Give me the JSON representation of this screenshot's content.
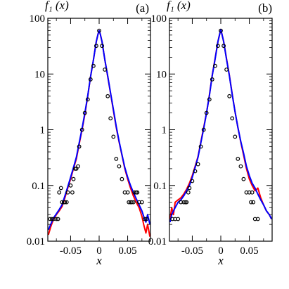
{
  "chart_data": [
    {
      "panel": "(a)",
      "type": "line",
      "ylabel": "f₁ (x)",
      "xlabel": "x",
      "yscale": "log",
      "ylim": [
        0.01,
        100
      ],
      "xlim": [
        -0.09,
        0.09
      ],
      "x_ticks": [
        "-0.05",
        "0",
        "0.05"
      ],
      "y_ticks": [
        "0.01",
        "0.1",
        "1",
        "10",
        "100"
      ],
      "series": [
        {
          "color": "#ff0000",
          "style": "line",
          "x": [
            -0.089,
            -0.085,
            -0.08,
            -0.075,
            -0.07,
            -0.065,
            -0.06,
            -0.055,
            -0.05,
            -0.045,
            -0.04,
            -0.035,
            -0.03,
            -0.025,
            -0.02,
            -0.015,
            -0.01,
            -0.005,
            -0.002,
            0,
            0.002,
            0.005,
            0.01,
            0.015,
            0.02,
            0.025,
            0.03,
            0.035,
            0.04,
            0.045,
            0.05,
            0.055,
            0.06,
            0.065,
            0.07,
            0.075,
            0.078,
            0.082,
            0.085,
            0.089
          ],
          "y": [
            0.013,
            0.018,
            0.025,
            0.03,
            0.035,
            0.042,
            0.06,
            0.09,
            0.13,
            0.2,
            0.3,
            0.55,
            1.0,
            1.9,
            4.0,
            9,
            18,
            38,
            52,
            60,
            52,
            38,
            18,
            9,
            4.5,
            2.2,
            1.1,
            0.6,
            0.35,
            0.2,
            0.13,
            0.09,
            0.065,
            0.05,
            0.04,
            0.028,
            0.02,
            0.014,
            0.02,
            0.012
          ]
        },
        {
          "color": "#0000ff",
          "style": "line",
          "x": [
            -0.089,
            -0.085,
            -0.08,
            -0.075,
            -0.07,
            -0.065,
            -0.06,
            -0.055,
            -0.05,
            -0.045,
            -0.04,
            -0.035,
            -0.03,
            -0.025,
            -0.02,
            -0.015,
            -0.01,
            -0.005,
            -0.002,
            0,
            0.002,
            0.005,
            0.01,
            0.015,
            0.02,
            0.025,
            0.03,
            0.035,
            0.04,
            0.045,
            0.05,
            0.055,
            0.06,
            0.065,
            0.07,
            0.075,
            0.078,
            0.082,
            0.085,
            0.089
          ],
          "y": [
            0.016,
            0.02,
            0.026,
            0.031,
            0.037,
            0.045,
            0.065,
            0.095,
            0.14,
            0.21,
            0.32,
            0.58,
            1.05,
            2.0,
            4.1,
            9,
            18,
            38,
            52,
            60,
            52,
            38,
            18,
            9.2,
            4.6,
            2.3,
            1.15,
            0.62,
            0.36,
            0.21,
            0.14,
            0.1,
            0.075,
            0.058,
            0.045,
            0.035,
            0.028,
            0.022,
            0.03,
            0.02
          ]
        },
        {
          "color": "#000000",
          "style": "circle",
          "x": [
            -0.086,
            -0.083,
            -0.08,
            -0.075,
            -0.072,
            -0.07,
            -0.067,
            -0.065,
            -0.062,
            -0.06,
            -0.057,
            -0.055,
            -0.05,
            -0.047,
            -0.045,
            -0.042,
            -0.04,
            -0.037,
            -0.035,
            -0.03,
            -0.025,
            -0.02,
            -0.015,
            -0.01,
            -0.005,
            0,
            0.005,
            0.01,
            0.015,
            0.02,
            0.025,
            0.03,
            0.035,
            0.04,
            0.045,
            0.05,
            0.052,
            0.055,
            0.057,
            0.06,
            0.062,
            0.065,
            0.067,
            0.07,
            0.075,
            0.08,
            0.083
          ],
          "y": [
            0.025,
            0.025,
            0.025,
            0.025,
            0.025,
            0.075,
            0.09,
            0.05,
            0.05,
            0.05,
            0.05,
            0.075,
            0.1,
            0.075,
            0.13,
            0.2,
            0.2,
            0.22,
            0.5,
            1.0,
            2.0,
            3.5,
            8.0,
            14,
            32,
            60,
            32,
            12,
            4.0,
            1.6,
            0.75,
            0.3,
            0.22,
            0.13,
            0.075,
            0.075,
            0.05,
            0.05,
            0.05,
            0.05,
            0.075,
            0.075,
            0.075,
            0.05,
            0.05,
            0.025,
            0.025
          ]
        }
      ]
    },
    {
      "panel": "(b)",
      "type": "line",
      "ylabel": "f₁ (x)",
      "xlabel": "x",
      "yscale": "log",
      "ylim": [
        0.01,
        100
      ],
      "xlim": [
        -0.09,
        0.09
      ],
      "x_ticks": [
        "-0.05",
        "0",
        "0.05"
      ],
      "y_ticks": [
        "0.01",
        "0.1",
        "1",
        "10",
        "100"
      ],
      "series": [
        {
          "color": "#ff0000",
          "style": "line",
          "x": [
            -0.089,
            -0.086,
            -0.083,
            -0.08,
            -0.075,
            -0.07,
            -0.065,
            -0.06,
            -0.055,
            -0.05,
            -0.045,
            -0.04,
            -0.035,
            -0.03,
            -0.025,
            -0.02,
            -0.015,
            -0.01,
            -0.005,
            -0.002,
            0,
            0.002,
            0.005,
            0.01,
            0.015,
            0.02,
            0.025,
            0.03,
            0.035,
            0.04,
            0.045,
            0.05,
            0.055,
            0.06,
            0.065,
            0.07,
            0.075,
            0.08,
            0.085,
            0.089
          ],
          "y": [
            0.025,
            0.04,
            0.03,
            0.05,
            0.055,
            0.06,
            0.07,
            0.085,
            0.11,
            0.15,
            0.22,
            0.33,
            0.6,
            1.1,
            2.0,
            4.2,
            9.5,
            19,
            38,
            52,
            62,
            52,
            38,
            19,
            9.5,
            4.4,
            2.1,
            1.1,
            0.6,
            0.35,
            0.2,
            0.13,
            0.1,
            0.08,
            0.09,
            0.06,
            0.045,
            0.035,
            0.03,
            0.025
          ]
        },
        {
          "color": "#0000ff",
          "style": "line",
          "x": [
            -0.089,
            -0.086,
            -0.083,
            -0.08,
            -0.075,
            -0.07,
            -0.065,
            -0.06,
            -0.055,
            -0.05,
            -0.045,
            -0.04,
            -0.035,
            -0.03,
            -0.025,
            -0.02,
            -0.015,
            -0.01,
            -0.005,
            -0.002,
            0,
            0.002,
            0.005,
            0.01,
            0.015,
            0.02,
            0.025,
            0.03,
            0.035,
            0.04,
            0.045,
            0.05,
            0.055,
            0.06,
            0.065,
            0.07,
            0.075,
            0.08,
            0.085,
            0.089
          ],
          "y": [
            0.022,
            0.03,
            0.035,
            0.04,
            0.05,
            0.055,
            0.065,
            0.08,
            0.1,
            0.14,
            0.21,
            0.32,
            0.58,
            1.05,
            2.0,
            4.1,
            9.3,
            18.5,
            38,
            52,
            62,
            52,
            38,
            18.5,
            9.3,
            4.3,
            2.1,
            1.1,
            0.62,
            0.38,
            0.22,
            0.15,
            0.11,
            0.09,
            0.07,
            0.055,
            0.045,
            0.035,
            0.03,
            0.025
          ]
        },
        {
          "color": "#000000",
          "style": "circle",
          "x": [
            -0.085,
            -0.08,
            -0.075,
            -0.07,
            -0.065,
            -0.062,
            -0.06,
            -0.057,
            -0.055,
            -0.05,
            -0.045,
            -0.04,
            -0.035,
            -0.03,
            -0.025,
            -0.02,
            -0.015,
            -0.01,
            -0.005,
            0,
            0.005,
            0.01,
            0.015,
            0.02,
            0.025,
            0.03,
            0.035,
            0.04,
            0.045,
            0.05,
            0.053,
            0.055,
            0.057,
            0.06,
            0.065
          ],
          "y": [
            0.025,
            0.025,
            0.025,
            0.05,
            0.05,
            0.05,
            0.05,
            0.075,
            0.09,
            0.12,
            0.18,
            0.24,
            0.5,
            1.0,
            2.0,
            3.5,
            8.0,
            14,
            32,
            60,
            32,
            12,
            4.0,
            1.6,
            0.75,
            0.3,
            0.22,
            0.13,
            0.075,
            0.075,
            0.05,
            0.075,
            0.05,
            0.025,
            0.025
          ]
        }
      ]
    }
  ]
}
